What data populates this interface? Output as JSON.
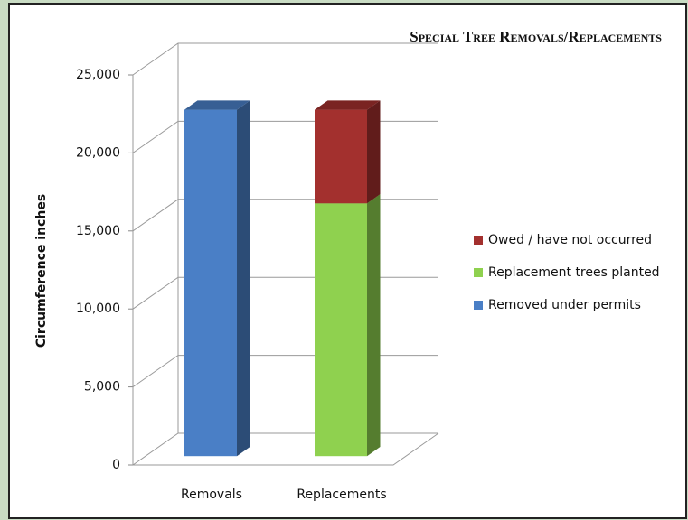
{
  "chart_data": {
    "type": "bar3d_stacked",
    "title": "Special Tree Removals/Replacements",
    "y_label": "Circumference inches",
    "categories": [
      "Removals",
      "Replacements"
    ],
    "series": [
      {
        "name": "Removed under permits",
        "color": "#4a7fc6",
        "values": [
          22200,
          null
        ]
      },
      {
        "name": "Replacement trees planted",
        "color": "#8fd14f",
        "values": [
          null,
          16200
        ]
      },
      {
        "name": "Owed / have not occurred",
        "color": "#a3302e",
        "values": [
          null,
          6000
        ]
      }
    ],
    "ylim": [
      0,
      25000
    ],
    "yticks": [
      0,
      {
        "value": 5000,
        "label": "5,000"
      },
      {
        "value": 10000,
        "label": "10,000"
      },
      {
        "value": 15000,
        "label": "15,000"
      },
      {
        "value": 20000,
        "label": "20,000"
      },
      {
        "value": 25000,
        "label": "25,000"
      }
    ],
    "grid": true,
    "legend": "right"
  }
}
